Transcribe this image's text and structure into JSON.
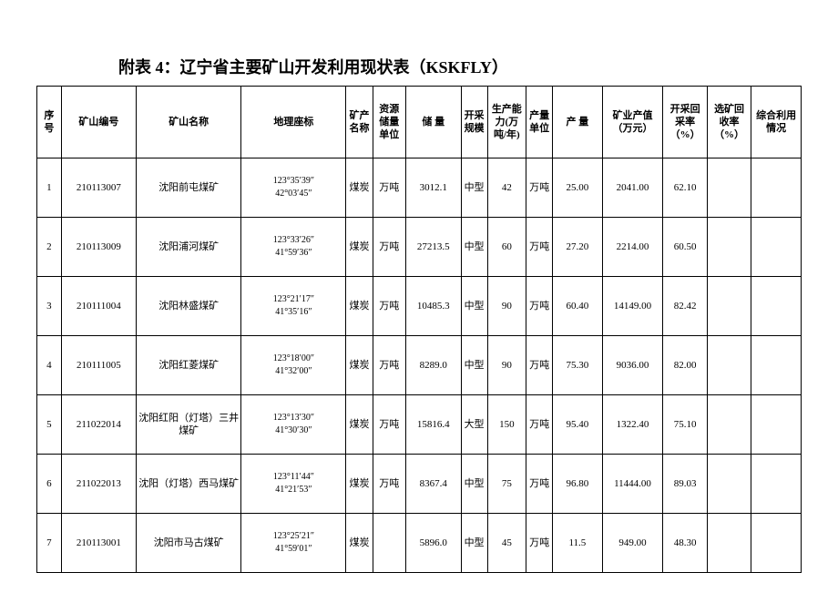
{
  "title": "附表 4：辽宁省主要矿山开发利用现状表（KSKFLY）",
  "columns": [
    "序号",
    "矿山编号",
    "矿山名称",
    "地理座标",
    "矿产名称",
    "资源储量单位",
    "储 量",
    "开采规模",
    "生产能力(万吨/年)",
    "产量单位",
    "产 量",
    "矿业产值（万元）",
    "开采回采率（%）",
    "选矿回收率（%）",
    "综合利用情况"
  ],
  "rows": [
    {
      "seq": "1",
      "mid": "210113007",
      "mname": "沈阳前屯煤矿",
      "coord1": "123°35′39″",
      "coord2": "42°03′45″",
      "mineral": "煤炭",
      "resunit": "万吨",
      "reserve": "3012.1",
      "scale": "中型",
      "capacity": "42",
      "outunit": "万吨",
      "output": "25.00",
      "value": "2041.00",
      "recovery": "62.10",
      "dressing": "",
      "comp": ""
    },
    {
      "seq": "2",
      "mid": "210113009",
      "mname": "沈阳浦河煤矿",
      "coord1": "123°33′26″",
      "coord2": "41°59′36″",
      "mineral": "煤炭",
      "resunit": "万吨",
      "reserve": "27213.5",
      "scale": "中型",
      "capacity": "60",
      "outunit": "万吨",
      "output": "27.20",
      "value": "2214.00",
      "recovery": "60.50",
      "dressing": "",
      "comp": ""
    },
    {
      "seq": "3",
      "mid": "210111004",
      "mname": "沈阳林盛煤矿",
      "coord1": "123°21′17″",
      "coord2": "41°35′16″",
      "mineral": "煤炭",
      "resunit": "万吨",
      "reserve": "10485.3",
      "scale": "中型",
      "capacity": "90",
      "outunit": "万吨",
      "output": "60.40",
      "value": "14149.00",
      "recovery": "82.42",
      "dressing": "",
      "comp": ""
    },
    {
      "seq": "4",
      "mid": "210111005",
      "mname": "沈阳红菱煤矿",
      "coord1": "123°18′00″",
      "coord2": "41°32′00″",
      "mineral": "煤炭",
      "resunit": "万吨",
      "reserve": "8289.0",
      "scale": "中型",
      "capacity": "90",
      "outunit": "万吨",
      "output": "75.30",
      "value": "9036.00",
      "recovery": "82.00",
      "dressing": "",
      "comp": ""
    },
    {
      "seq": "5",
      "mid": "211022014",
      "mname": "沈阳红阳（灯塔）三井煤矿",
      "coord1": "123°13′30″",
      "coord2": "41°30′30″",
      "mineral": "煤炭",
      "resunit": "万吨",
      "reserve": "15816.4",
      "scale": "大型",
      "capacity": "150",
      "outunit": "万吨",
      "output": "95.40",
      "value": "1322.40",
      "recovery": "75.10",
      "dressing": "",
      "comp": ""
    },
    {
      "seq": "6",
      "mid": "211022013",
      "mname": "沈阳（灯塔）西马煤矿",
      "coord1": "123°11′44″",
      "coord2": "41°21′53″",
      "mineral": "煤炭",
      "resunit": "万吨",
      "reserve": "8367.4",
      "scale": "中型",
      "capacity": "75",
      "outunit": "万吨",
      "output": "96.80",
      "value": "11444.00",
      "recovery": "89.03",
      "dressing": "",
      "comp": ""
    },
    {
      "seq": "7",
      "mid": "210113001",
      "mname": "沈阳市马古煤矿",
      "coord1": "123°25′21″",
      "coord2": "41°59′01″",
      "mineral": "煤炭",
      "resunit": "",
      "reserve": "5896.0",
      "scale": "中型",
      "capacity": "45",
      "outunit": "万吨",
      "output": "11.5",
      "value": "949.00",
      "recovery": "48.30",
      "dressing": "",
      "comp": ""
    }
  ]
}
